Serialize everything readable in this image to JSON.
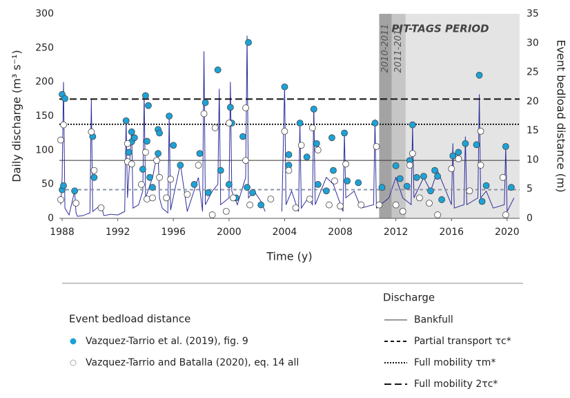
{
  "chart_data": {
    "type": "line",
    "x_label": "Time (y)",
    "y_label": "Daily discharge (m³ s⁻¹)",
    "y2_label": "Event bedload distance (m)",
    "xlim": [
      1987.8,
      2020.9
    ],
    "xticks": [
      1988,
      1992,
      1996,
      2000,
      2004,
      2008,
      2012,
      2016,
      2020
    ],
    "ylim": [
      0,
      300
    ],
    "yticks": [
      0,
      50,
      100,
      150,
      200,
      250,
      300
    ],
    "y2lim": [
      0,
      35
    ],
    "y2ticks": [
      0,
      5,
      10,
      15,
      20,
      25,
      30,
      35
    ],
    "pit_period": {
      "label": "PIT-TAGS PERIOD",
      "start": 2010.8,
      "end": 2020.9,
      "color": "#e4e4e4"
    },
    "periods": [
      {
        "label": "2010-2011",
        "start": 2010.8,
        "end": 2011.7,
        "color": "#a3a3a3"
      },
      {
        "label": "2011-2012",
        "start": 2011.7,
        "end": 2012.7,
        "color": "#c6c6c6"
      }
    ],
    "discharge": {
      "color": "#2d2d9c",
      "x": [
        1987.9,
        1988.0,
        1988.1,
        1988.2,
        1988.5,
        1988.9,
        1989.0,
        1989.1,
        1989.5,
        1990.0,
        1990.1,
        1990.2,
        1990.8,
        1991.0,
        1991.5,
        1992.0,
        1992.5,
        1992.6,
        1992.7,
        1993.0,
        1993.1,
        1993.5,
        1993.8,
        1993.9,
        1994.0,
        1994.5,
        1994.9,
        1995.0,
        1995.2,
        1995.6,
        1995.7,
        1995.8,
        1996.5,
        1997.0,
        1997.8,
        1998.1,
        1998.2,
        1998.3,
        1998.8,
        1999.2,
        1999.3,
        1999.4,
        2000.0,
        2000.1,
        2000.2,
        2000.6,
        2001.2,
        2001.3,
        2001.4,
        2001.8,
        2002.3,
        2002.6,
        2003.0,
        2003.8,
        2004.0,
        2004.1,
        2004.5,
        2005.0,
        2005.1,
        2005.2,
        2005.7,
        2006.0,
        2006.1,
        2006.2,
        2007.0,
        2007.5,
        2008.2,
        2008.3,
        2008.4,
        2009.0,
        2009.5,
        2010.4,
        2010.5,
        2010.6,
        2011.5,
        2012.0,
        2012.5,
        2013.1,
        2013.2,
        2013.3,
        2014.0,
        2014.5,
        2015.0,
        2016.0,
        2016.1,
        2016.2,
        2016.9,
        2017.0,
        2017.1,
        2017.9,
        2018.0,
        2018.1,
        2018.5,
        2019.0,
        2019.8,
        2019.9,
        2020.0,
        2020.5
      ],
      "values": [
        20,
        60,
        200,
        15,
        5,
        40,
        8,
        3,
        4,
        8,
        175,
        10,
        20,
        4,
        6,
        5,
        10,
        145,
        30,
        130,
        15,
        20,
        40,
        180,
        30,
        60,
        100,
        30,
        15,
        8,
        150,
        12,
        80,
        10,
        60,
        10,
        245,
        20,
        40,
        50,
        190,
        20,
        30,
        200,
        40,
        20,
        60,
        268,
        30,
        40,
        25,
        10,
        null,
        10,
        195,
        20,
        40,
        10,
        140,
        15,
        30,
        20,
        165,
        20,
        60,
        50,
        10,
        125,
        30,
        40,
        15,
        20,
        145,
        15,
        30,
        60,
        30,
        20,
        135,
        30,
        60,
        40,
        70,
        20,
        110,
        15,
        20,
        120,
        20,
        30,
        182,
        30,
        40,
        15,
        20,
        105,
        10,
        30
      ]
    },
    "thresholds": [
      {
        "name": "Bankfull",
        "value": 85,
        "style": "solid",
        "color": "#333333"
      },
      {
        "name": "Partial transport τc*",
        "value": 42,
        "style": "dashed",
        "color": "#8a93a8"
      },
      {
        "name": "Full mobility τm*",
        "value": 138,
        "style": "dotted",
        "color": "#111111"
      },
      {
        "name": "Full mobility 2τc*",
        "value": 175,
        "style": "long-dashed",
        "color": "#111111"
      }
    ],
    "legend_title": "Event bedload distance",
    "threshold_legend_title": "Discharge",
    "series": [
      {
        "name": "Vazquez-Tarrio et al. (2019), fig. 9",
        "color": "#1ba3d8",
        "axis": "y2",
        "x": [
          1988.0,
          1988.2,
          1988.0,
          1988.1,
          1988.9,
          1990.2,
          1990.3,
          1992.6,
          1992.8,
          1993.0,
          1993.0,
          1993.2,
          1993.8,
          1994.0,
          1994.2,
          1994.1,
          1994.3,
          1994.5,
          1994.9,
          1994.9,
          1995.0,
          1995.7,
          1996.0,
          1996.5,
          1997.5,
          1997.9,
          1998.3,
          1998.5,
          1999.2,
          1999.4,
          2000.0,
          2000.1,
          2000.2,
          2000.5,
          2001.0,
          2001.4,
          2001.3,
          2001.7,
          2002.3,
          2004.0,
          2004.3,
          2004.3,
          2005.1,
          2005.6,
          2006.1,
          2006.3,
          2006.4,
          2007.0,
          2007.5,
          2007.4,
          2008.3,
          2008.5,
          2009.3,
          2010.5,
          2011.0,
          2012.0,
          2012.3,
          2012.8,
          2013.0,
          2013.2,
          2013.5,
          2014.0,
          2014.5,
          2014.8,
          2015.0,
          2015.3,
          2016.1,
          2016.5,
          2017.0,
          2017.8,
          2018.0,
          2018.2,
          2018.5,
          2019.9,
          2020.3
        ],
        "values": [
          21.2,
          20.5,
          4.9,
          5.6,
          4.7,
          14,
          7,
          16.7,
          11.3,
          14.8,
          13.1,
          13.8,
          8.4,
          21,
          19.3,
          13.2,
          7,
          5.3,
          15.2,
          11.1,
          14.6,
          17.5,
          12.5,
          9.1,
          5.8,
          11.1,
          19.8,
          4.4,
          25.4,
          8.2,
          5.8,
          19,
          16.3,
          3.5,
          14,
          30.1,
          5.3,
          4.4,
          2.3,
          22.5,
          10.9,
          9.1,
          16.3,
          10.5,
          18.7,
          12.8,
          5.8,
          4.7,
          8.2,
          13.8,
          14.6,
          6.4,
          6.1,
          16.3,
          5.3,
          9,
          6.8,
          5.5,
          9.9,
          16,
          7,
          7.2,
          4.7,
          8.2,
          7.2,
          3.2,
          10.7,
          11.3,
          12.8,
          12.6,
          24.5,
          2.9,
          5.6,
          12.3,
          5.3
        ]
      },
      {
        "name": "Vazquez-Tarrio and Batalla (2020), eq. 14 all",
        "color": "#ffffff",
        "axis": "y2",
        "x": [
          1987.9,
          1988.1,
          1987.9,
          1989.0,
          1990.1,
          1990.3,
          1990.8,
          1992.7,
          1992.7,
          1993.0,
          1993.7,
          1994.0,
          1994.1,
          1994.5,
          1994.8,
          1995.0,
          1995.5,
          1995.8,
          1997.0,
          1997.8,
          1998.2,
          1998.8,
          1999.0,
          1999.8,
          2000.0,
          2000.3,
          2001.2,
          2001.2,
          2001.5,
          2003.0,
          2004.0,
          2004.3,
          2004.8,
          2005.2,
          2005.8,
          2006.0,
          2006.4,
          2007.2,
          2007.6,
          2008.0,
          2008.4,
          2009.5,
          2010.6,
          2010.8,
          2012.0,
          2012.5,
          2013.0,
          2013.2,
          2013.7,
          2014.4,
          2015.0,
          2016.0,
          2016.5,
          2017.3,
          2018.1,
          2018.1,
          2019.7,
          2019.9
        ],
        "values": [
          13.4,
          16,
          3.2,
          2.6,
          14.8,
          8.2,
          1.8,
          12.8,
          9.7,
          9.3,
          5.8,
          11.3,
          3.3,
          3.5,
          9.9,
          7,
          3.5,
          6.7,
          4.1,
          9.1,
          17.9,
          0.6,
          15.5,
          1.2,
          16.3,
          3.5,
          18.9,
          9.9,
          2.3,
          3.3,
          14.9,
          8.2,
          1.8,
          12.5,
          3.3,
          15.5,
          11.7,
          2.3,
          6.4,
          2.1,
          9.3,
          2.3,
          12.3,
          2.3,
          2.3,
          1.2,
          9.1,
          11.1,
          3.5,
          2.6,
          0.6,
          8.5,
          10.2,
          4.7,
          9.1,
          14.9,
          7,
          0.6
        ]
      }
    ]
  }
}
